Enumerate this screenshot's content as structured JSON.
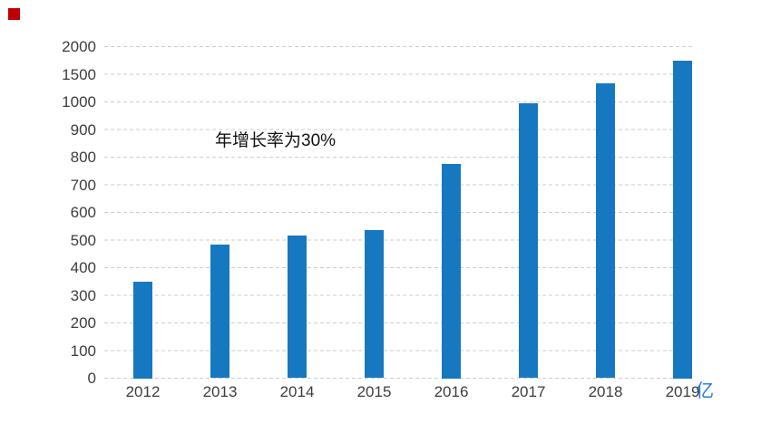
{
  "chart_data": {
    "type": "bar",
    "title": "",
    "categories": [
      "2012",
      "2013",
      "2014",
      "2015",
      "2016",
      "2017",
      "2018",
      "2019"
    ],
    "values": [
      350,
      485,
      515,
      535,
      775,
      995,
      1330,
      1750
    ],
    "y_ticks": [
      0,
      100,
      200,
      300,
      400,
      500,
      600,
      700,
      800,
      900,
      1000,
      1500,
      2000
    ],
    "y_axis_note": "non-linear axis: steps of 100 up to 1000 then steps of 500, all ticks equally spaced",
    "annotation": "年增长率为30%",
    "unit_label": "亿",
    "xlabel": "",
    "ylabel": "",
    "legend_position": "none",
    "grid": "horizontal-dashed",
    "colors": {
      "bar": "#1778c2",
      "unit_label": "#1e7ad2",
      "gridline": "#cdcdcd",
      "tick_label": "#3d3d3d",
      "annotation": "#111111",
      "background": "#ffffff",
      "corner_marker": "#c00000"
    }
  }
}
